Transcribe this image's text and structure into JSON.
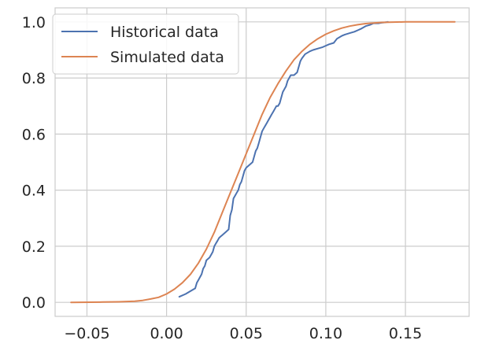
{
  "chart_data": {
    "type": "line",
    "title": "",
    "xlabel": "",
    "ylabel": "",
    "xlim": [
      -0.07,
      0.19
    ],
    "ylim": [
      -0.05,
      1.05
    ],
    "x_ticks": [
      -0.05,
      0.0,
      0.05,
      0.1,
      0.15
    ],
    "x_tick_labels": [
      "−0.05",
      "0.00",
      "0.05",
      "0.10",
      "0.15"
    ],
    "y_ticks": [
      0.0,
      0.2,
      0.4,
      0.6,
      0.8,
      1.0
    ],
    "y_tick_labels": [
      "0.0",
      "0.2",
      "0.4",
      "0.6",
      "0.8",
      "1.0"
    ],
    "grid": true,
    "legend": "top-left",
    "series": [
      {
        "name": "Historical data",
        "color": "#4c72b0",
        "x": [
          0.008,
          0.012,
          0.015,
          0.018,
          0.019,
          0.02,
          0.021,
          0.022,
          0.023,
          0.024,
          0.025,
          0.027,
          0.028,
          0.029,
          0.03,
          0.031,
          0.032,
          0.033,
          0.034,
          0.035,
          0.037,
          0.039,
          0.04,
          0.041,
          0.042,
          0.043,
          0.044,
          0.045,
          0.046,
          0.047,
          0.048,
          0.049,
          0.05,
          0.052,
          0.054,
          0.055,
          0.056,
          0.057,
          0.058,
          0.059,
          0.06,
          0.061,
          0.062,
          0.063,
          0.064,
          0.065,
          0.066,
          0.067,
          0.068,
          0.069,
          0.07,
          0.071,
          0.072,
          0.073,
          0.074,
          0.075,
          0.076,
          0.078,
          0.08,
          0.082,
          0.084,
          0.085,
          0.087,
          0.09,
          0.092,
          0.095,
          0.098,
          0.1,
          0.102,
          0.105,
          0.107,
          0.11,
          0.112,
          0.115,
          0.118,
          0.12,
          0.122,
          0.125,
          0.128,
          0.13,
          0.133,
          0.135,
          0.137,
          0.139
        ],
        "y": [
          0.02,
          0.03,
          0.04,
          0.05,
          0.07,
          0.08,
          0.09,
          0.1,
          0.12,
          0.13,
          0.15,
          0.16,
          0.17,
          0.18,
          0.2,
          0.21,
          0.22,
          0.23,
          0.235,
          0.24,
          0.25,
          0.26,
          0.31,
          0.33,
          0.37,
          0.38,
          0.39,
          0.4,
          0.42,
          0.43,
          0.45,
          0.47,
          0.48,
          0.49,
          0.5,
          0.52,
          0.54,
          0.55,
          0.57,
          0.59,
          0.61,
          0.62,
          0.63,
          0.64,
          0.65,
          0.66,
          0.67,
          0.68,
          0.69,
          0.7,
          0.7,
          0.71,
          0.73,
          0.75,
          0.76,
          0.77,
          0.79,
          0.81,
          0.81,
          0.82,
          0.86,
          0.87,
          0.885,
          0.895,
          0.9,
          0.905,
          0.91,
          0.915,
          0.92,
          0.925,
          0.94,
          0.95,
          0.955,
          0.96,
          0.965,
          0.97,
          0.975,
          0.985,
          0.99,
          0.995,
          0.995,
          0.997,
          0.998,
          1.0
        ]
      },
      {
        "name": "Simulated data",
        "color": "#dd8452",
        "x": [
          -0.06,
          -0.04,
          -0.03,
          -0.02,
          -0.015,
          -0.01,
          -0.005,
          0.0,
          0.005,
          0.01,
          0.015,
          0.02,
          0.025,
          0.03,
          0.035,
          0.04,
          0.045,
          0.05,
          0.055,
          0.06,
          0.065,
          0.07,
          0.075,
          0.08,
          0.085,
          0.09,
          0.095,
          0.1,
          0.105,
          0.11,
          0.115,
          0.12,
          0.125,
          0.13,
          0.135,
          0.14,
          0.15,
          0.16,
          0.17,
          0.181
        ],
        "y": [
          0.0,
          0.001,
          0.002,
          0.004,
          0.007,
          0.012,
          0.018,
          0.03,
          0.047,
          0.07,
          0.1,
          0.14,
          0.19,
          0.25,
          0.32,
          0.39,
          0.46,
          0.53,
          0.6,
          0.67,
          0.73,
          0.78,
          0.825,
          0.865,
          0.895,
          0.92,
          0.94,
          0.956,
          0.968,
          0.978,
          0.985,
          0.99,
          0.994,
          0.996,
          0.998,
          0.999,
          1.0,
          1.0,
          1.0,
          1.0
        ]
      }
    ]
  }
}
